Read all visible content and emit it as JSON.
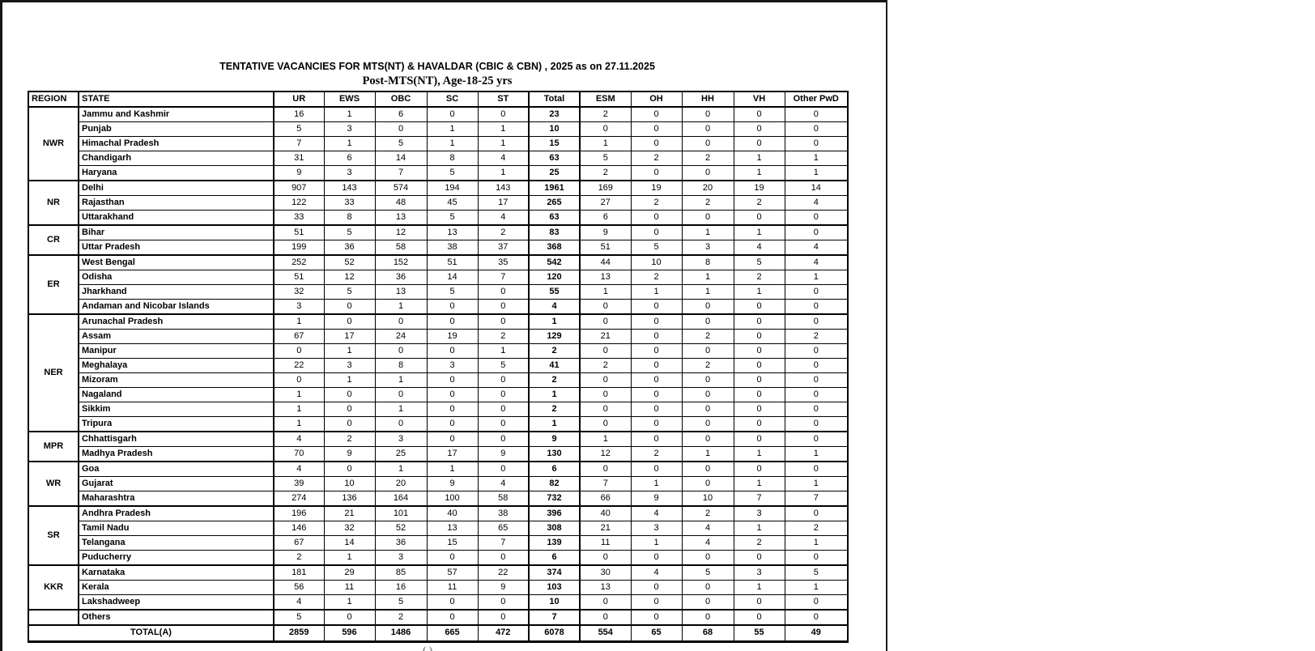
{
  "page": {
    "title": "TENTATIVE VACANCIES FOR MTS(NT) & HAVALDAR (CBIC & CBN) , 2025 as on 27.11.2025",
    "subtitle": "Post-MTS(NT), Age-18-25 yrs",
    "bottom_fragment": "( )"
  },
  "table": {
    "columns": [
      "REGION",
      "STATE",
      "UR",
      "EWS",
      "OBC",
      "SC",
      "ST",
      "Total",
      "ESM",
      "OH",
      "HH",
      "VH",
      "Other PwD"
    ],
    "groups": [
      {
        "region": "NWR",
        "rows": [
          {
            "state": "Jammu and Kashmir",
            "values": [
              16,
              1,
              6,
              0,
              0,
              23,
              2,
              0,
              0,
              0,
              0
            ]
          },
          {
            "state": "Punjab",
            "values": [
              5,
              3,
              0,
              1,
              1,
              10,
              0,
              0,
              0,
              0,
              0
            ]
          },
          {
            "state": "Himachal Pradesh",
            "values": [
              7,
              1,
              5,
              1,
              1,
              15,
              1,
              0,
              0,
              0,
              0
            ]
          },
          {
            "state": "Chandigarh",
            "values": [
              31,
              6,
              14,
              8,
              4,
              63,
              5,
              2,
              2,
              1,
              1
            ]
          },
          {
            "state": "Haryana",
            "values": [
              9,
              3,
              7,
              5,
              1,
              25,
              2,
              0,
              0,
              1,
              1
            ]
          }
        ]
      },
      {
        "region": "NR",
        "rows": [
          {
            "state": "Delhi",
            "values": [
              907,
              143,
              574,
              194,
              143,
              1961,
              169,
              19,
              20,
              19,
              14
            ]
          },
          {
            "state": "Rajasthan",
            "values": [
              122,
              33,
              48,
              45,
              17,
              265,
              27,
              2,
              2,
              2,
              4
            ]
          },
          {
            "state": "Uttarakhand",
            "values": [
              33,
              8,
              13,
              5,
              4,
              63,
              6,
              0,
              0,
              0,
              0
            ]
          }
        ]
      },
      {
        "region": "CR",
        "rows": [
          {
            "state": "Bihar",
            "values": [
              51,
              5,
              12,
              13,
              2,
              83,
              9,
              0,
              1,
              1,
              0
            ]
          },
          {
            "state": "Uttar Pradesh",
            "values": [
              199,
              36,
              58,
              38,
              37,
              368,
              51,
              5,
              3,
              4,
              4
            ]
          }
        ]
      },
      {
        "region": "ER",
        "rows": [
          {
            "state": "West Bengal",
            "values": [
              252,
              52,
              152,
              51,
              35,
              542,
              44,
              10,
              8,
              5,
              4
            ]
          },
          {
            "state": "Odisha",
            "values": [
              51,
              12,
              36,
              14,
              7,
              120,
              13,
              2,
              1,
              2,
              1
            ]
          },
          {
            "state": "Jharkhand",
            "values": [
              32,
              5,
              13,
              5,
              0,
              55,
              1,
              1,
              1,
              1,
              0
            ]
          },
          {
            "state": "Andaman and Nicobar Islands",
            "values": [
              3,
              0,
              1,
              0,
              0,
              4,
              0,
              0,
              0,
              0,
              0
            ]
          }
        ]
      },
      {
        "region": "NER",
        "rows": [
          {
            "state": "Arunachal Pradesh",
            "values": [
              1,
              0,
              0,
              0,
              0,
              1,
              0,
              0,
              0,
              0,
              0
            ]
          },
          {
            "state": "Assam",
            "values": [
              67,
              17,
              24,
              19,
              2,
              129,
              21,
              0,
              2,
              0,
              2
            ]
          },
          {
            "state": "Manipur",
            "values": [
              0,
              1,
              0,
              0,
              1,
              2,
              0,
              0,
              0,
              0,
              0
            ]
          },
          {
            "state": "Meghalaya",
            "values": [
              22,
              3,
              8,
              3,
              5,
              41,
              2,
              0,
              2,
              0,
              0
            ]
          },
          {
            "state": "Mizoram",
            "values": [
              0,
              1,
              1,
              0,
              0,
              2,
              0,
              0,
              0,
              0,
              0
            ]
          },
          {
            "state": "Nagaland",
            "values": [
              1,
              0,
              0,
              0,
              0,
              1,
              0,
              0,
              0,
              0,
              0
            ]
          },
          {
            "state": "Sikkim",
            "values": [
              1,
              0,
              1,
              0,
              0,
              2,
              0,
              0,
              0,
              0,
              0
            ]
          },
          {
            "state": "Tripura",
            "values": [
              1,
              0,
              0,
              0,
              0,
              1,
              0,
              0,
              0,
              0,
              0
            ]
          }
        ]
      },
      {
        "region": "MPR",
        "rows": [
          {
            "state": "Chhattisgarh",
            "values": [
              4,
              2,
              3,
              0,
              0,
              9,
              1,
              0,
              0,
              0,
              0
            ]
          },
          {
            "state": "Madhya Pradesh",
            "values": [
              70,
              9,
              25,
              17,
              9,
              130,
              12,
              2,
              1,
              1,
              1
            ]
          }
        ]
      },
      {
        "region": "WR",
        "rows": [
          {
            "state": "Goa",
            "values": [
              4,
              0,
              1,
              1,
              0,
              6,
              0,
              0,
              0,
              0,
              0
            ]
          },
          {
            "state": "Gujarat",
            "values": [
              39,
              10,
              20,
              9,
              4,
              82,
              7,
              1,
              0,
              1,
              1
            ]
          },
          {
            "state": "Maharashtra",
            "values": [
              274,
              136,
              164,
              100,
              58,
              732,
              66,
              9,
              10,
              7,
              7
            ]
          }
        ]
      },
      {
        "region": "SR",
        "rows": [
          {
            "state": "Andhra Pradesh",
            "values": [
              196,
              21,
              101,
              40,
              38,
              396,
              40,
              4,
              2,
              3,
              0
            ]
          },
          {
            "state": "Tamil Nadu",
            "values": [
              146,
              32,
              52,
              13,
              65,
              308,
              21,
              3,
              4,
              1,
              2
            ]
          },
          {
            "state": "Telangana",
            "values": [
              67,
              14,
              36,
              15,
              7,
              139,
              11,
              1,
              4,
              2,
              1
            ]
          },
          {
            "state": "Puducherry",
            "values": [
              2,
              1,
              3,
              0,
              0,
              6,
              0,
              0,
              0,
              0,
              0
            ]
          }
        ]
      },
      {
        "region": "KKR",
        "rows": [
          {
            "state": "Karnataka",
            "values": [
              181,
              29,
              85,
              57,
              22,
              374,
              30,
              4,
              5,
              3,
              5
            ]
          },
          {
            "state": "Kerala",
            "values": [
              56,
              11,
              16,
              11,
              9,
              103,
              13,
              0,
              0,
              1,
              1
            ]
          },
          {
            "state": "Lakshadweep",
            "values": [
              4,
              1,
              5,
              0,
              0,
              10,
              0,
              0,
              0,
              0,
              0
            ]
          }
        ]
      },
      {
        "region": "",
        "rows": [
          {
            "state": "Others",
            "values": [
              5,
              0,
              2,
              0,
              0,
              7,
              0,
              0,
              0,
              0,
              0
            ]
          }
        ]
      }
    ],
    "total_row": {
      "label": "TOTAL(A)",
      "values": [
        2859,
        596,
        1486,
        665,
        472,
        6078,
        554,
        65,
        68,
        55,
        49
      ]
    }
  }
}
